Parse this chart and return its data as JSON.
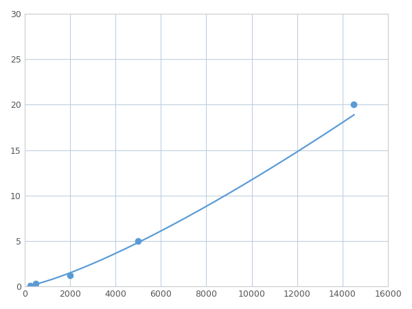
{
  "x": [
    250,
    500,
    2000,
    5000,
    14500
  ],
  "y": [
    0.1,
    0.3,
    1.2,
    5.0,
    20.0
  ],
  "line_color": "#5b9bd5",
  "marker_color": "#5b9bd5",
  "marker_size": 6,
  "line_width": 1.6,
  "xlim": [
    0,
    16000
  ],
  "ylim": [
    0,
    30
  ],
  "xticks": [
    0,
    2000,
    4000,
    6000,
    8000,
    10000,
    12000,
    14000,
    16000
  ],
  "yticks": [
    0,
    5,
    10,
    15,
    20,
    25,
    30
  ],
  "grid_color": "#c0cfe0",
  "background_color": "#ffffff",
  "figsize": [
    6.0,
    4.5
  ],
  "dpi": 100
}
